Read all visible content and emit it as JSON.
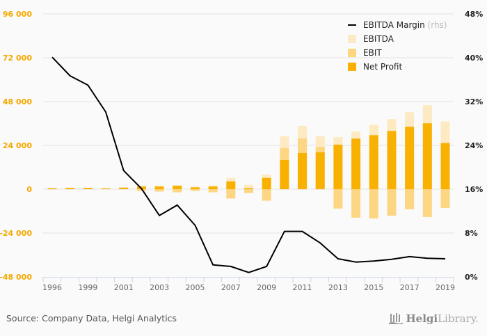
{
  "chart_data": {
    "type": "bar",
    "title": "",
    "categories": [
      "1996",
      "1997",
      "1999",
      "2000",
      "2001",
      "2002",
      "2003",
      "2004",
      "2005",
      "2006",
      "2007",
      "2008",
      "2009",
      "2010",
      "2011",
      "2012",
      "2013",
      "2014",
      "2015",
      "2016",
      "2017",
      "2018",
      "2019"
    ],
    "x_tick_labels": [
      "1996",
      "1999",
      "2001",
      "2003",
      "2005",
      "2007",
      "2009",
      "2011",
      "2013",
      "2015",
      "2017",
      "2019"
    ],
    "series": [
      {
        "name": "EBITDA",
        "axis": "left",
        "color": "#fdeac2",
        "values": [
          800,
          900,
          900,
          700,
          1100,
          1800,
          1900,
          2300,
          1500,
          2000,
          6200,
          2400,
          8100,
          29000,
          34700,
          29000,
          28500,
          31600,
          35300,
          38400,
          42200,
          46000,
          37100
        ]
      },
      {
        "name": "EBIT",
        "axis": "left",
        "color": "#fdd683",
        "values": [
          600,
          700,
          700,
          500,
          900,
          -1000,
          -1300,
          -1700,
          -900,
          -1700,
          -5100,
          -2100,
          -6300,
          22500,
          27800,
          23200,
          -10600,
          -15600,
          -16000,
          -14500,
          -11000,
          -15200,
          -10300
        ]
      },
      {
        "name": "Net Profit",
        "axis": "left",
        "color": "#f8b100",
        "values": [
          500,
          700,
          700,
          400,
          800,
          1500,
          1500,
          1900,
          1000,
          1500,
          4300,
          600,
          6200,
          16000,
          19800,
          20200,
          24400,
          27700,
          29600,
          31900,
          34200,
          36100,
          25300
        ]
      },
      {
        "name": "EBITDA Margin",
        "axis": "right",
        "type": "line",
        "color": "#000000",
        "values": [
          40.1,
          36.7,
          35.0,
          30.1,
          19.4,
          16.1,
          11.2,
          13.1,
          9.4,
          2.2,
          1.9,
          0.8,
          1.9,
          8.3,
          8.3,
          6.2,
          3.3,
          2.7,
          2.9,
          3.2,
          3.7,
          3.4,
          3.3
        ]
      }
    ],
    "y_left": {
      "ylim": [
        -48000,
        96000
      ],
      "ticks": [
        -48000,
        -24000,
        0,
        24000,
        48000,
        72000,
        96000
      ],
      "tick_labels": [
        "-48 000",
        "-24 000",
        "0",
        "24 000",
        "48 000",
        "72 000",
        "96 000"
      ]
    },
    "y_right": {
      "ylim": [
        0,
        48
      ],
      "ticks": [
        0,
        8,
        16,
        24,
        32,
        40,
        48
      ],
      "tick_labels": [
        "0%",
        "8%",
        "16%",
        "24%",
        "32%",
        "40%",
        "48%"
      ]
    },
    "grid": true,
    "legend": {
      "placement": "top-right",
      "entries": [
        {
          "label": "EBITDA Margin",
          "suffix": "(rhs)",
          "kind": "line",
          "color": "#000000"
        },
        {
          "label": "EBITDA",
          "kind": "box",
          "color": "#fdeac2"
        },
        {
          "label": "EBIT",
          "kind": "box",
          "color": "#fdd683"
        },
        {
          "label": "Net Profit",
          "kind": "box",
          "color": "#f8b100"
        }
      ]
    }
  },
  "footer": {
    "source": "Source: Company Data, Helgi Analytics",
    "logo_helgi": "Helgi",
    "logo_library": "Library."
  }
}
